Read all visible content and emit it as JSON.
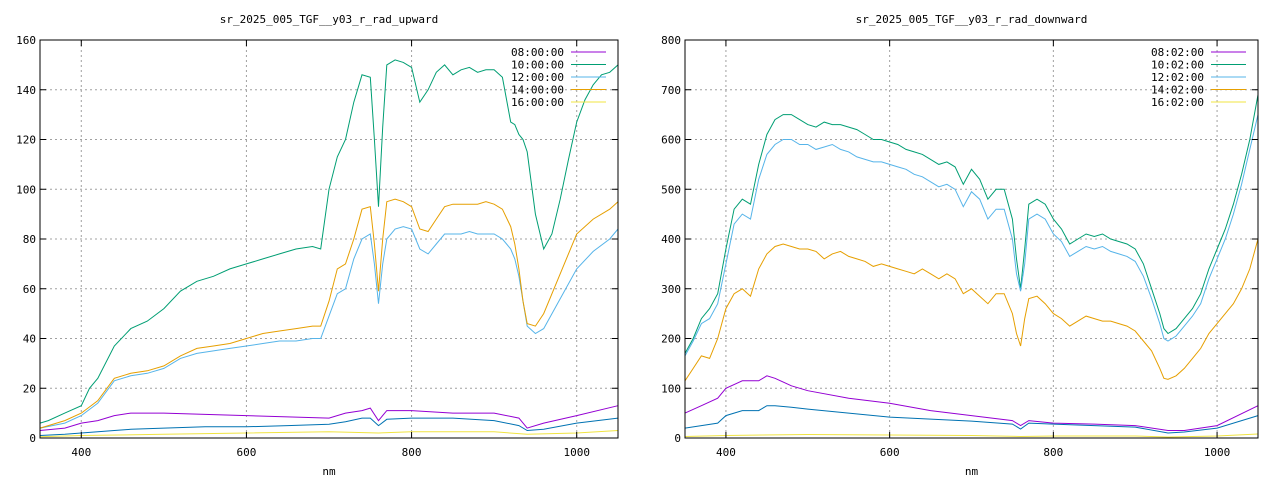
{
  "chart_data": [
    {
      "type": "line",
      "title": "sr_2025_005_TGF__y03_r_rad_upward",
      "xlabel": "nm",
      "ylabel": "",
      "xlim": [
        350,
        1050
      ],
      "ylim": [
        0,
        160
      ],
      "xticks": [
        400,
        600,
        800,
        1000
      ],
      "yticks": [
        0,
        20,
        40,
        60,
        80,
        100,
        120,
        140,
        160
      ],
      "grid": true,
      "legend_position": "top-right",
      "series": [
        {
          "name": "08:00:00",
          "color": "#9400d3",
          "x": [
            350,
            380,
            400,
            420,
            440,
            460,
            500,
            550,
            600,
            650,
            700,
            720,
            740,
            750,
            760,
            770,
            800,
            850,
            900,
            930,
            940,
            960,
            1000,
            1050
          ],
          "y": [
            3,
            4,
            6,
            7,
            9,
            10,
            10,
            9.5,
            9,
            8.5,
            8,
            10,
            11,
            12,
            7,
            11,
            11,
            10,
            10,
            8,
            4,
            6,
            9,
            13
          ]
        },
        {
          "name": "10:00:00",
          "color": "#009e73",
          "x": [
            350,
            360,
            380,
            400,
            410,
            420,
            440,
            460,
            480,
            500,
            520,
            540,
            560,
            580,
            600,
            620,
            640,
            660,
            680,
            690,
            700,
            710,
            720,
            730,
            740,
            750,
            755,
            760,
            765,
            770,
            780,
            790,
            800,
            810,
            820,
            830,
            840,
            850,
            860,
            870,
            880,
            890,
            900,
            910,
            920,
            925,
            930,
            935,
            940,
            950,
            960,
            970,
            980,
            990,
            1000,
            1010,
            1020,
            1030,
            1040,
            1050
          ],
          "y": [
            6,
            7,
            10,
            13,
            20,
            24,
            37,
            44,
            47,
            52,
            59,
            63,
            65,
            68,
            70,
            72,
            74,
            76,
            77,
            76,
            100,
            113,
            120,
            135,
            146,
            145,
            120,
            93,
            125,
            150,
            152,
            151,
            149,
            135,
            140,
            147,
            150,
            146,
            148,
            149,
            147,
            148,
            148,
            145,
            127,
            126,
            122,
            120,
            115,
            90,
            76,
            82,
            96,
            112,
            127,
            136,
            142,
            146,
            147,
            150
          ]
        },
        {
          "name": "12:00:00",
          "color": "#56b4e9",
          "x": [
            350,
            380,
            400,
            420,
            440,
            460,
            480,
            500,
            520,
            540,
            560,
            580,
            600,
            620,
            640,
            660,
            680,
            690,
            700,
            710,
            720,
            730,
            740,
            750,
            755,
            760,
            765,
            770,
            780,
            790,
            800,
            810,
            820,
            830,
            840,
            850,
            860,
            870,
            880,
            890,
            900,
            910,
            920,
            925,
            930,
            935,
            940,
            950,
            960,
            980,
            1000,
            1020,
            1040,
            1050
          ],
          "y": [
            4,
            6,
            9,
            14,
            23,
            25,
            26,
            28,
            32,
            34,
            35,
            36,
            37,
            38,
            39,
            39,
            40,
            40,
            49,
            58,
            60,
            72,
            80,
            82,
            70,
            54,
            70,
            80,
            84,
            85,
            84,
            76,
            74,
            78,
            82,
            82,
            82,
            83,
            82,
            82,
            82,
            80,
            76,
            72,
            65,
            55,
            45,
            42,
            44,
            56,
            68,
            75,
            80,
            84
          ]
        },
        {
          "name": "14:00:00",
          "color": "#e69f00",
          "x": [
            350,
            380,
            400,
            420,
            440,
            460,
            480,
            500,
            520,
            540,
            560,
            580,
            600,
            620,
            640,
            660,
            680,
            690,
            700,
            710,
            720,
            730,
            740,
            750,
            755,
            760,
            765,
            770,
            780,
            790,
            800,
            810,
            820,
            830,
            840,
            850,
            860,
            870,
            880,
            890,
            900,
            910,
            920,
            925,
            930,
            935,
            940,
            950,
            960,
            980,
            1000,
            1020,
            1040,
            1050
          ],
          "y": [
            4,
            7,
            10,
            15,
            24,
            26,
            27,
            29,
            33,
            36,
            37,
            38,
            40,
            42,
            43,
            44,
            45,
            45,
            55,
            68,
            70,
            80,
            92,
            93,
            78,
            59,
            80,
            95,
            96,
            95,
            93,
            84,
            83,
            88,
            93,
            94,
            94,
            94,
            94,
            95,
            94,
            92,
            85,
            78,
            68,
            55,
            46,
            45,
            50,
            66,
            82,
            88,
            92,
            95
          ]
        },
        {
          "name": "16:00:00",
          "color": "#f0e442",
          "x": [
            350,
            400,
            500,
            600,
            700,
            760,
            800,
            900,
            940,
            1000,
            1050
          ],
          "y": [
            0.5,
            1,
            1.5,
            2,
            2.5,
            2,
            2.5,
            2.5,
            1.5,
            2,
            3
          ]
        },
        {
          "name": "",
          "color": "#0072b2",
          "x": [
            350,
            380,
            400,
            420,
            440,
            460,
            500,
            550,
            600,
            650,
            700,
            720,
            740,
            750,
            760,
            770,
            800,
            850,
            900,
            930,
            940,
            960,
            1000,
            1050
          ],
          "y": [
            1,
            1.5,
            2,
            2.5,
            3,
            3.5,
            4,
            4.5,
            4.5,
            5,
            5.5,
            6.5,
            8,
            8,
            5,
            7.5,
            8,
            8,
            7,
            5,
            3,
            3.5,
            6,
            8
          ]
        }
      ]
    },
    {
      "type": "line",
      "title": "sr_2025_005_TGF__y03_r_rad_downward",
      "xlabel": "nm",
      "ylabel": "",
      "xlim": [
        350,
        1050
      ],
      "ylim": [
        0,
        800
      ],
      "xticks": [
        400,
        600,
        800,
        1000
      ],
      "yticks": [
        0,
        100,
        200,
        300,
        400,
        500,
        600,
        700,
        800
      ],
      "grid": true,
      "legend_position": "top-right",
      "series": [
        {
          "name": "08:02:00",
          "color": "#9400d3",
          "x": [
            350,
            370,
            390,
            400,
            420,
            440,
            450,
            460,
            480,
            500,
            550,
            600,
            650,
            700,
            750,
            760,
            770,
            800,
            850,
            900,
            940,
            960,
            1000,
            1050
          ],
          "y": [
            50,
            65,
            80,
            100,
            115,
            115,
            125,
            120,
            105,
            95,
            80,
            70,
            55,
            45,
            35,
            25,
            35,
            30,
            28,
            25,
            15,
            15,
            25,
            65
          ]
        },
        {
          "name": "10:02:00",
          "color": "#009e73",
          "x": [
            350,
            360,
            370,
            380,
            390,
            400,
            410,
            420,
            430,
            440,
            450,
            460,
            470,
            480,
            490,
            500,
            510,
            520,
            530,
            540,
            550,
            560,
            570,
            580,
            590,
            600,
            610,
            620,
            630,
            640,
            650,
            660,
            670,
            680,
            690,
            700,
            710,
            720,
            730,
            740,
            750,
            755,
            760,
            765,
            770,
            780,
            790,
            800,
            810,
            820,
            830,
            840,
            850,
            860,
            870,
            880,
            890,
            900,
            910,
            920,
            930,
            935,
            940,
            950,
            960,
            970,
            980,
            990,
            1000,
            1010,
            1020,
            1030,
            1040,
            1050
          ],
          "y": [
            170,
            200,
            240,
            260,
            290,
            380,
            460,
            480,
            470,
            550,
            610,
            640,
            650,
            650,
            640,
            630,
            625,
            635,
            630,
            630,
            625,
            620,
            610,
            600,
            600,
            595,
            590,
            580,
            575,
            570,
            560,
            550,
            555,
            545,
            510,
            540,
            520,
            480,
            500,
            500,
            440,
            360,
            300,
            380,
            470,
            480,
            470,
            440,
            420,
            390,
            400,
            410,
            405,
            410,
            400,
            395,
            390,
            380,
            350,
            300,
            250,
            220,
            210,
            220,
            240,
            260,
            290,
            340,
            380,
            420,
            470,
            530,
            600,
            690
          ]
        },
        {
          "name": "12:02:00",
          "color": "#56b4e9",
          "x": [
            350,
            360,
            370,
            380,
            390,
            400,
            410,
            420,
            430,
            440,
            450,
            460,
            470,
            480,
            490,
            500,
            510,
            520,
            530,
            540,
            550,
            560,
            570,
            580,
            590,
            600,
            610,
            620,
            630,
            640,
            650,
            660,
            670,
            680,
            690,
            700,
            710,
            720,
            730,
            740,
            750,
            755,
            760,
            765,
            770,
            780,
            790,
            800,
            810,
            820,
            830,
            840,
            850,
            860,
            870,
            880,
            890,
            900,
            910,
            920,
            930,
            935,
            940,
            950,
            960,
            970,
            980,
            990,
            1000,
            1010,
            1020,
            1030,
            1040,
            1050
          ],
          "y": [
            165,
            195,
            230,
            240,
            270,
            350,
            430,
            450,
            440,
            520,
            570,
            590,
            600,
            600,
            590,
            590,
            580,
            585,
            590,
            580,
            575,
            565,
            560,
            555,
            555,
            550,
            545,
            540,
            530,
            525,
            515,
            505,
            510,
            500,
            465,
            495,
            480,
            440,
            460,
            460,
            400,
            330,
            295,
            350,
            440,
            450,
            440,
            410,
            395,
            365,
            375,
            385,
            380,
            385,
            375,
            370,
            365,
            355,
            325,
            280,
            230,
            200,
            195,
            205,
            225,
            245,
            270,
            320,
            360,
            400,
            450,
            510,
            580,
            650
          ]
        },
        {
          "name": "14:02:00",
          "color": "#e69f00",
          "x": [
            350,
            360,
            370,
            380,
            390,
            400,
            410,
            420,
            430,
            440,
            450,
            460,
            470,
            480,
            490,
            500,
            510,
            520,
            530,
            540,
            550,
            560,
            570,
            580,
            590,
            600,
            610,
            620,
            630,
            640,
            650,
            660,
            670,
            680,
            690,
            700,
            710,
            720,
            730,
            740,
            750,
            755,
            760,
            765,
            770,
            780,
            790,
            800,
            810,
            820,
            830,
            840,
            850,
            860,
            870,
            880,
            890,
            900,
            910,
            920,
            930,
            935,
            940,
            950,
            960,
            970,
            980,
            990,
            1000,
            1010,
            1020,
            1030,
            1040,
            1050
          ],
          "y": [
            115,
            140,
            165,
            160,
            200,
            260,
            290,
            300,
            285,
            340,
            370,
            385,
            390,
            385,
            380,
            380,
            375,
            360,
            370,
            375,
            365,
            360,
            355,
            345,
            350,
            345,
            340,
            335,
            330,
            340,
            330,
            320,
            330,
            320,
            290,
            300,
            285,
            270,
            290,
            290,
            250,
            210,
            185,
            240,
            280,
            285,
            270,
            250,
            240,
            225,
            235,
            245,
            240,
            235,
            235,
            230,
            225,
            215,
            195,
            175,
            140,
            120,
            118,
            125,
            140,
            160,
            180,
            210,
            230,
            250,
            270,
            300,
            340,
            400
          ]
        },
        {
          "name": "16:02:00",
          "color": "#f0e442",
          "x": [
            350,
            400,
            500,
            600,
            700,
            760,
            800,
            900,
            940,
            1000,
            1050
          ],
          "y": [
            3,
            5,
            7,
            6,
            5,
            3,
            4,
            4,
            2,
            4,
            8
          ]
        },
        {
          "name": "",
          "color": "#0072b2",
          "x": [
            350,
            370,
            390,
            400,
            420,
            440,
            450,
            460,
            480,
            500,
            550,
            600,
            650,
            700,
            750,
            760,
            770,
            800,
            850,
            900,
            940,
            960,
            1000,
            1050
          ],
          "y": [
            20,
            25,
            30,
            45,
            55,
            55,
            65,
            65,
            62,
            58,
            50,
            42,
            38,
            34,
            28,
            18,
            30,
            28,
            25,
            22,
            10,
            12,
            20,
            45
          ]
        }
      ]
    }
  ]
}
